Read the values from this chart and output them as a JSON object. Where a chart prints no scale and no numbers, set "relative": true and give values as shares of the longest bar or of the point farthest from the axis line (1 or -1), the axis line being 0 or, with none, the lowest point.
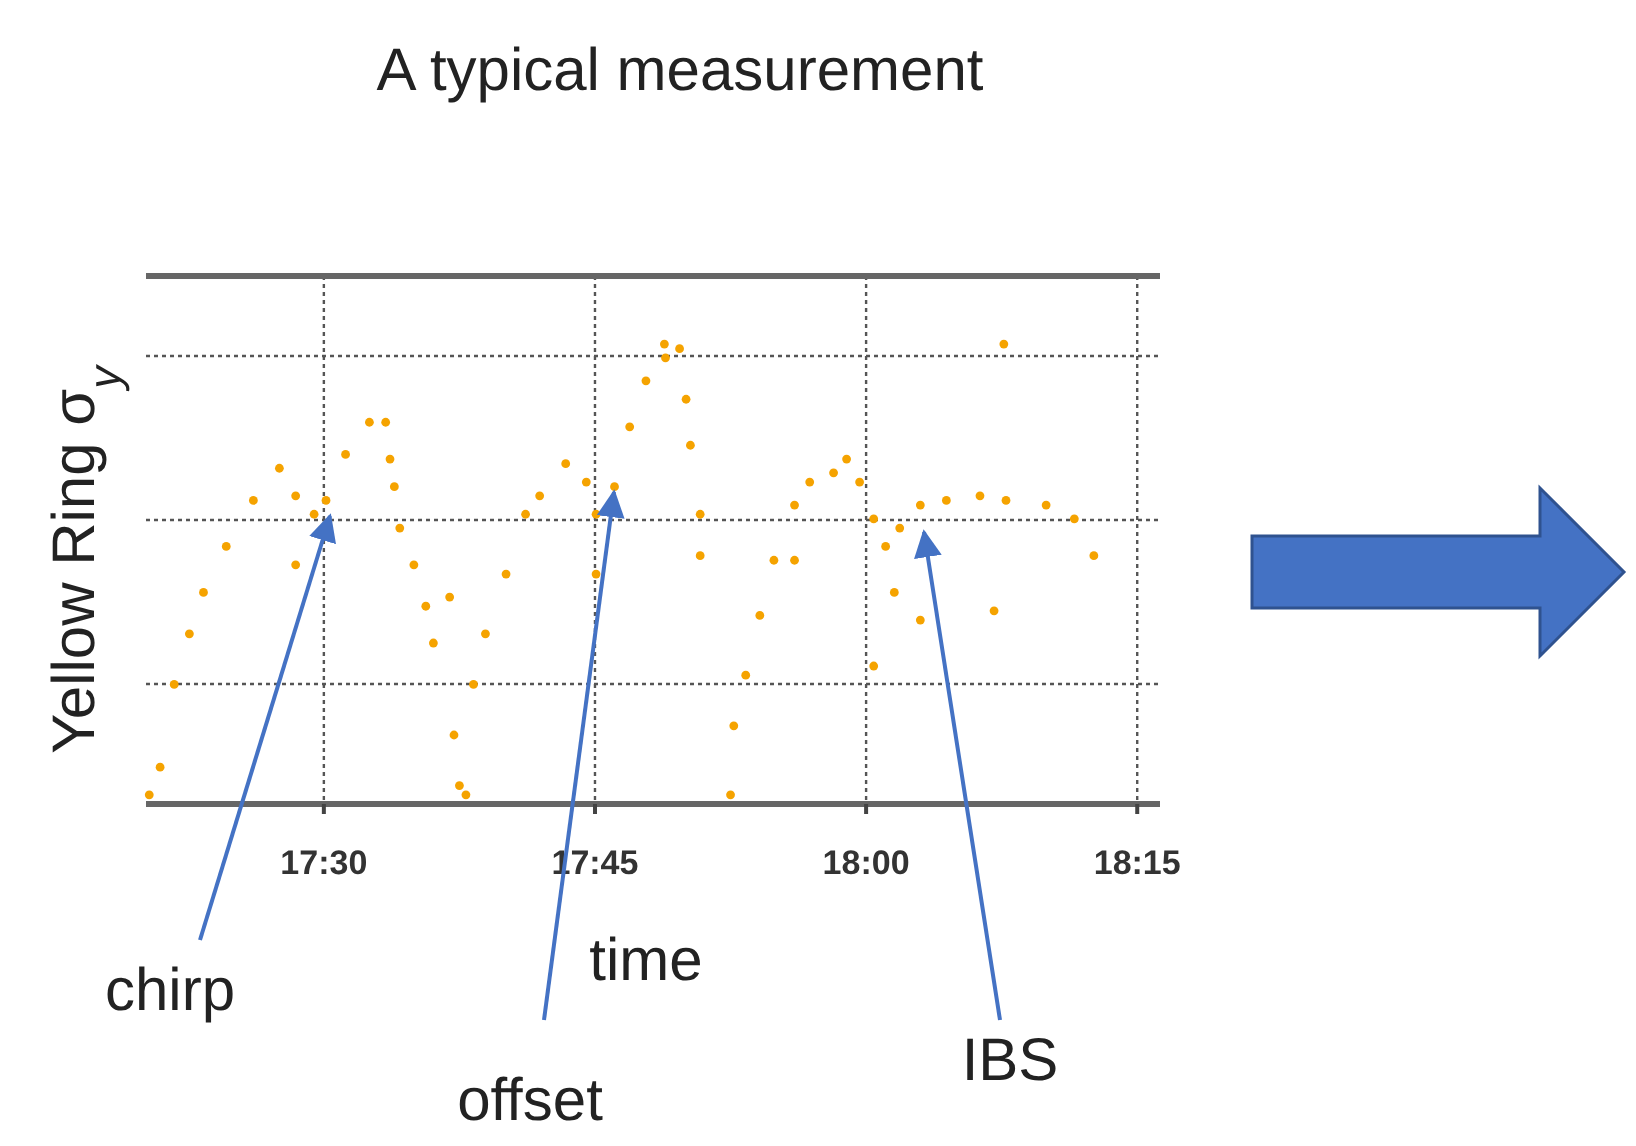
{
  "chart_data": {
    "type": "scatter",
    "title": "A typical measurement",
    "ylabel": "Yellow Ring σ$_{y}$",
    "relative": true,
    "grid": true,
    "marker": "circle",
    "xlim": [
      17.336,
      18.271
    ],
    "xticks": [
      {
        "value": 17.5,
        "label": "17:30"
      },
      {
        "value": 17.75,
        "label": "17:45"
      },
      {
        "value": 18,
        "label": "18:00"
      },
      {
        "value": 18.25,
        "label": "18:15"
      }
    ],
    "series": [
      {
        "color": "#f5a300",
        "x": [
          17.339,
          17.349,
          17.362,
          17.376,
          17.389,
          17.41,
          17.435,
          17.459,
          17.474,
          17.491,
          17.502,
          17.52,
          17.542,
          17.557,
          17.561,
          17.565,
          17.57,
          17.583,
          17.594,
          17.601,
          17.474,
          17.616,
          17.62,
          17.625,
          17.631,
          17.638,
          17.649,
          17.668,
          17.686,
          17.699,
          17.723,
          17.742,
          17.751,
          17.751,
          17.768,
          17.782,
          17.797,
          17.815,
          17.828,
          17.814,
          17.834,
          17.838,
          17.847,
          17.847,
          17.875,
          17.878,
          17.889,
          17.902,
          17.915,
          17.934,
          17.948,
          17.97,
          17.982,
          17.994,
          18.007,
          18.018,
          18.031,
          18.05,
          18.074,
          18.105,
          18.129,
          18.166,
          18.192,
          18.21,
          18.026,
          18.05,
          18.007,
          18.118,
          18.127,
          17.934
        ],
        "values": [
          0.02,
          0.08,
          0.26,
          0.37,
          0.46,
          0.56,
          0.66,
          0.73,
          0.67,
          0.63,
          0.66,
          0.76,
          0.83,
          0.83,
          0.75,
          0.69,
          0.6,
          0.52,
          0.43,
          0.35,
          0.52,
          0.45,
          0.15,
          0.04,
          0.02,
          0.26,
          0.37,
          0.5,
          0.63,
          0.67,
          0.74,
          0.7,
          0.63,
          0.5,
          0.69,
          0.82,
          0.92,
          0.97,
          0.99,
          1.0,
          0.88,
          0.78,
          0.63,
          0.54,
          0.02,
          0.17,
          0.28,
          0.41,
          0.53,
          0.65,
          0.7,
          0.72,
          0.75,
          0.7,
          0.62,
          0.56,
          0.6,
          0.65,
          0.66,
          0.67,
          0.66,
          0.65,
          0.62,
          0.54,
          0.46,
          0.4,
          0.3,
          0.42,
          1.0,
          0.53
        ]
      }
    ],
    "annotations": [
      "chirp",
      "time",
      "offset",
      "IBS"
    ]
  }
}
